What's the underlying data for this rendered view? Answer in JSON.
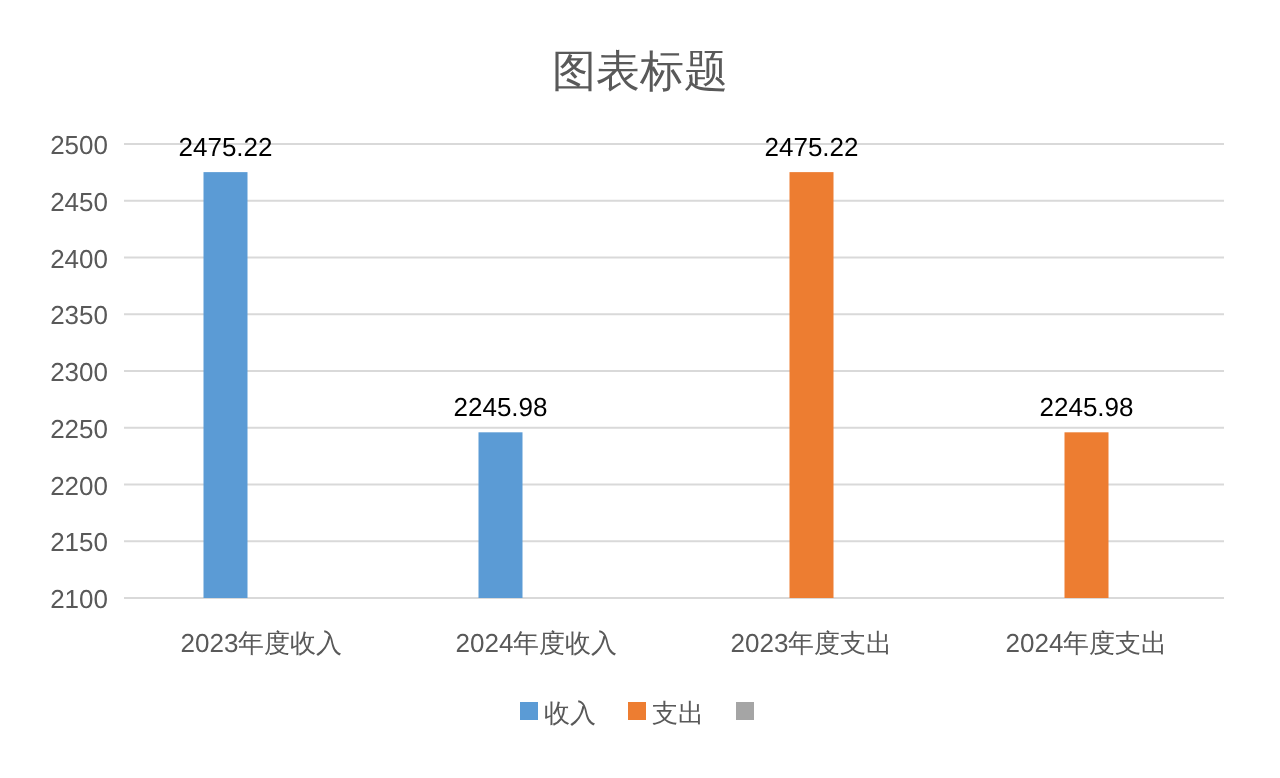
{
  "chart_data": {
    "type": "bar",
    "title": "图表标题",
    "categories": [
      "2023年度收入",
      "2024年度收入",
      "2023年度支出",
      "2024年度支出"
    ],
    "series": [
      {
        "name": "收入",
        "color": "#5b9bd5",
        "values": [
          2475.22,
          2245.98,
          null,
          null
        ]
      },
      {
        "name": "支出",
        "color": "#ed7d31",
        "values": [
          null,
          null,
          2475.22,
          2245.98
        ]
      },
      {
        "color": "#a5a5a5",
        "values": [
          null,
          null,
          null,
          null
        ]
      }
    ],
    "ylim": [
      2100,
      2500
    ],
    "yticks": [
      2100,
      2150,
      2200,
      2250,
      2300,
      2350,
      2400,
      2450,
      2500
    ],
    "grid": "y",
    "legend": "bottom",
    "data_labels": true
  }
}
